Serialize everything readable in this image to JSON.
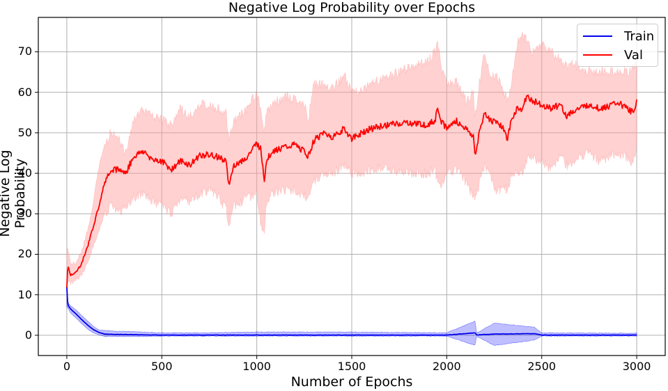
{
  "chart_data": {
    "type": "line",
    "title": "Negative Log Probability over Epochs",
    "xlabel": "Number of Epochs",
    "ylabel": "Negative Log Probability",
    "xlim": [
      -150,
      3150
    ],
    "ylim": [
      -5,
      78.5
    ],
    "xticks": [
      0,
      500,
      1000,
      1500,
      2000,
      2500,
      3000
    ],
    "yticks": [
      0,
      10,
      20,
      30,
      40,
      50,
      60,
      70
    ],
    "grid": true,
    "legend_position": "upper right",
    "series": [
      {
        "name": "Train",
        "color": "#0000ee",
        "band_color": "#0000ff",
        "x": [
          0,
          5,
          20,
          50,
          80,
          110,
          140,
          170,
          200,
          250,
          300,
          400,
          500,
          700,
          1000,
          1500,
          2000,
          2150,
          2155,
          2160,
          2250,
          2460,
          2500,
          3000
        ],
        "mean": [
          12,
          7.5,
          6.5,
          5.2,
          3.8,
          2.5,
          1.4,
          0.7,
          0.3,
          0.2,
          0.2,
          0.1,
          0.05,
          0.05,
          0.05,
          0.05,
          0.05,
          0.6,
          0.2,
          0.1,
          0.3,
          0.4,
          0.05,
          0.05
        ],
        "lower": [
          7,
          6.8,
          5.5,
          4.2,
          2.8,
          1.5,
          0.6,
          0.1,
          -0.3,
          -0.3,
          -0.3,
          -0.3,
          -0.2,
          -0.2,
          -0.2,
          -0.2,
          -0.2,
          -2.5,
          -0.5,
          -0.3,
          -2.5,
          -1.2,
          -0.2,
          -0.2
        ],
        "upper": [
          12.5,
          8.0,
          7.3,
          6.2,
          4.8,
          3.5,
          2.2,
          1.3,
          1.2,
          1.0,
          1.0,
          0.8,
          0.6,
          0.6,
          0.8,
          0.8,
          0.6,
          3.5,
          1.0,
          0.6,
          3.0,
          2.0,
          0.6,
          0.5
        ]
      },
      {
        "name": "Val",
        "color": "#ff0000",
        "band_color": "#ff9999",
        "x": [
          0,
          5,
          20,
          50,
          80,
          110,
          140,
          170,
          200,
          230,
          270,
          310,
          350,
          400,
          450,
          500,
          550,
          600,
          650,
          700,
          750,
          800,
          840,
          850,
          880,
          950,
          1000,
          1020,
          1040,
          1050,
          1080,
          1150,
          1200,
          1260,
          1270,
          1300,
          1350,
          1400,
          1460,
          1500,
          1550,
          1600,
          1650,
          1700,
          1800,
          1900,
          1940,
          1950,
          1970,
          2000,
          2050,
          2100,
          2140,
          2150,
          2170,
          2200,
          2230,
          2260,
          2300,
          2320,
          2340,
          2370,
          2400,
          2420,
          2450,
          2500,
          2550,
          2600,
          2630,
          2650,
          2700,
          2750,
          2800,
          2850,
          2900,
          2950,
          2980,
          2995,
          3000
        ],
        "mean": [
          12,
          17,
          15,
          15.5,
          18,
          22,
          27,
          32,
          38,
          41,
          41,
          40,
          44,
          45.5,
          43.5,
          43,
          41,
          43,
          42,
          44.5,
          44.5,
          44,
          43,
          36.5,
          42,
          44,
          47.5,
          46,
          38.5,
          43,
          45.5,
          46.5,
          47,
          45,
          44,
          48,
          50,
          49,
          51,
          48.5,
          50,
          51,
          51.5,
          52,
          52.5,
          52,
          53,
          57,
          53,
          51,
          53,
          51,
          49,
          44,
          50,
          55,
          53,
          53,
          51,
          48.5,
          53,
          56,
          56,
          59,
          58,
          57,
          56,
          57,
          54,
          55,
          56,
          57,
          56,
          56.5,
          57.5,
          56,
          55,
          57,
          59
        ],
        "lower": [
          9,
          13.5,
          13,
          13.5,
          15,
          18,
          22,
          26,
          30,
          32,
          30,
          32,
          34,
          35,
          33,
          32,
          30,
          34,
          33,
          35,
          36,
          34,
          31,
          26,
          32,
          34,
          35,
          28,
          24,
          33,
          35,
          36,
          36,
          34,
          33,
          38,
          40,
          40,
          42,
          40,
          40,
          41,
          41,
          41,
          40,
          40,
          41,
          38,
          37,
          40,
          41,
          38,
          34,
          33,
          37,
          42,
          40,
          35,
          37,
          35,
          40,
          40,
          41,
          43,
          44,
          43,
          41,
          45,
          42,
          42,
          44,
          45,
          43,
          44,
          45,
          44,
          42,
          45,
          48
        ],
        "upper": [
          20,
          22,
          17.5,
          18,
          21,
          26,
          33,
          42,
          47,
          50,
          49,
          45,
          53,
          56,
          54,
          53,
          52,
          56,
          54,
          57,
          57,
          56,
          55,
          48,
          53,
          56,
          60,
          56,
          50,
          55,
          57,
          59,
          58,
          56,
          53,
          62,
          62,
          61,
          64,
          60,
          60,
          62,
          63,
          64,
          66,
          68,
          70,
          73,
          66,
          62,
          63,
          58,
          60,
          54,
          62,
          70,
          64,
          64,
          60,
          58,
          62,
          72,
          74,
          73,
          70,
          72,
          70,
          68,
          66,
          68,
          66,
          65,
          65,
          65,
          65,
          65,
          66,
          67,
          67
        ]
      }
    ]
  }
}
